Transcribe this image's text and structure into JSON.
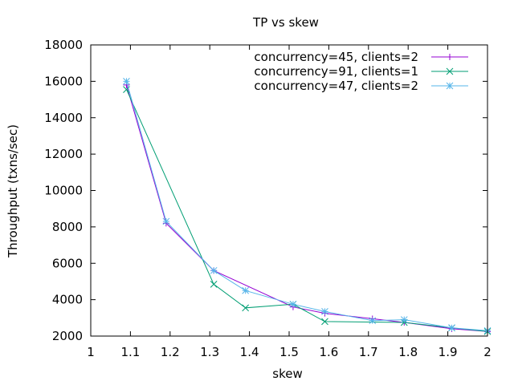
{
  "chart_data": {
    "type": "line",
    "title": "TP vs skew",
    "xlabel": "skew",
    "ylabel": "Throughput (txns/sec)",
    "xlim": [
      1,
      2
    ],
    "ylim": [
      2000,
      18000
    ],
    "xticks": [
      1,
      1.1,
      1.2,
      1.3,
      1.4,
      1.5,
      1.6,
      1.7,
      1.8,
      1.9,
      2
    ],
    "xtick_labels": [
      "1",
      "1.1",
      "1.2",
      "1.3",
      "1.4",
      "1.5",
      "1.6",
      "1.7",
      "1.8",
      "1.9",
      "2"
    ],
    "yticks": [
      2000,
      4000,
      6000,
      8000,
      10000,
      12000,
      14000,
      16000,
      18000
    ],
    "ytick_labels": [
      "2000",
      "4000",
      "6000",
      "8000",
      "10000",
      "12000",
      "14000",
      "16000",
      "18000"
    ],
    "grid": false,
    "legend_position": "top-right",
    "series": [
      {
        "name": "concurrency=45, clients=2",
        "color": "#9400d3",
        "marker": "plus",
        "x": [
          1.09,
          1.19,
          1.31,
          1.51,
          1.59,
          1.71,
          1.79,
          1.91,
          2.0
        ],
        "y": [
          15800,
          8200,
          5600,
          3600,
          3250,
          2950,
          2750,
          2400,
          2250
        ]
      },
      {
        "name": "concurrency=91, clients=1",
        "color": "#009e73",
        "marker": "cross",
        "x": [
          1.09,
          1.31,
          1.39,
          1.51,
          1.59,
          1.79,
          1.91,
          2.0
        ],
        "y": [
          15550,
          4850,
          3550,
          3750,
          2800,
          2750,
          2450,
          2250
        ]
      },
      {
        "name": "concurrency=47, clients=2",
        "color": "#56b4e9",
        "marker": "asterisk",
        "x": [
          1.09,
          1.19,
          1.31,
          1.39,
          1.51,
          1.59,
          1.71,
          1.79,
          1.91,
          2.0
        ],
        "y": [
          16000,
          8300,
          5600,
          4500,
          3750,
          3350,
          2850,
          2900,
          2450,
          2300
        ]
      }
    ]
  }
}
